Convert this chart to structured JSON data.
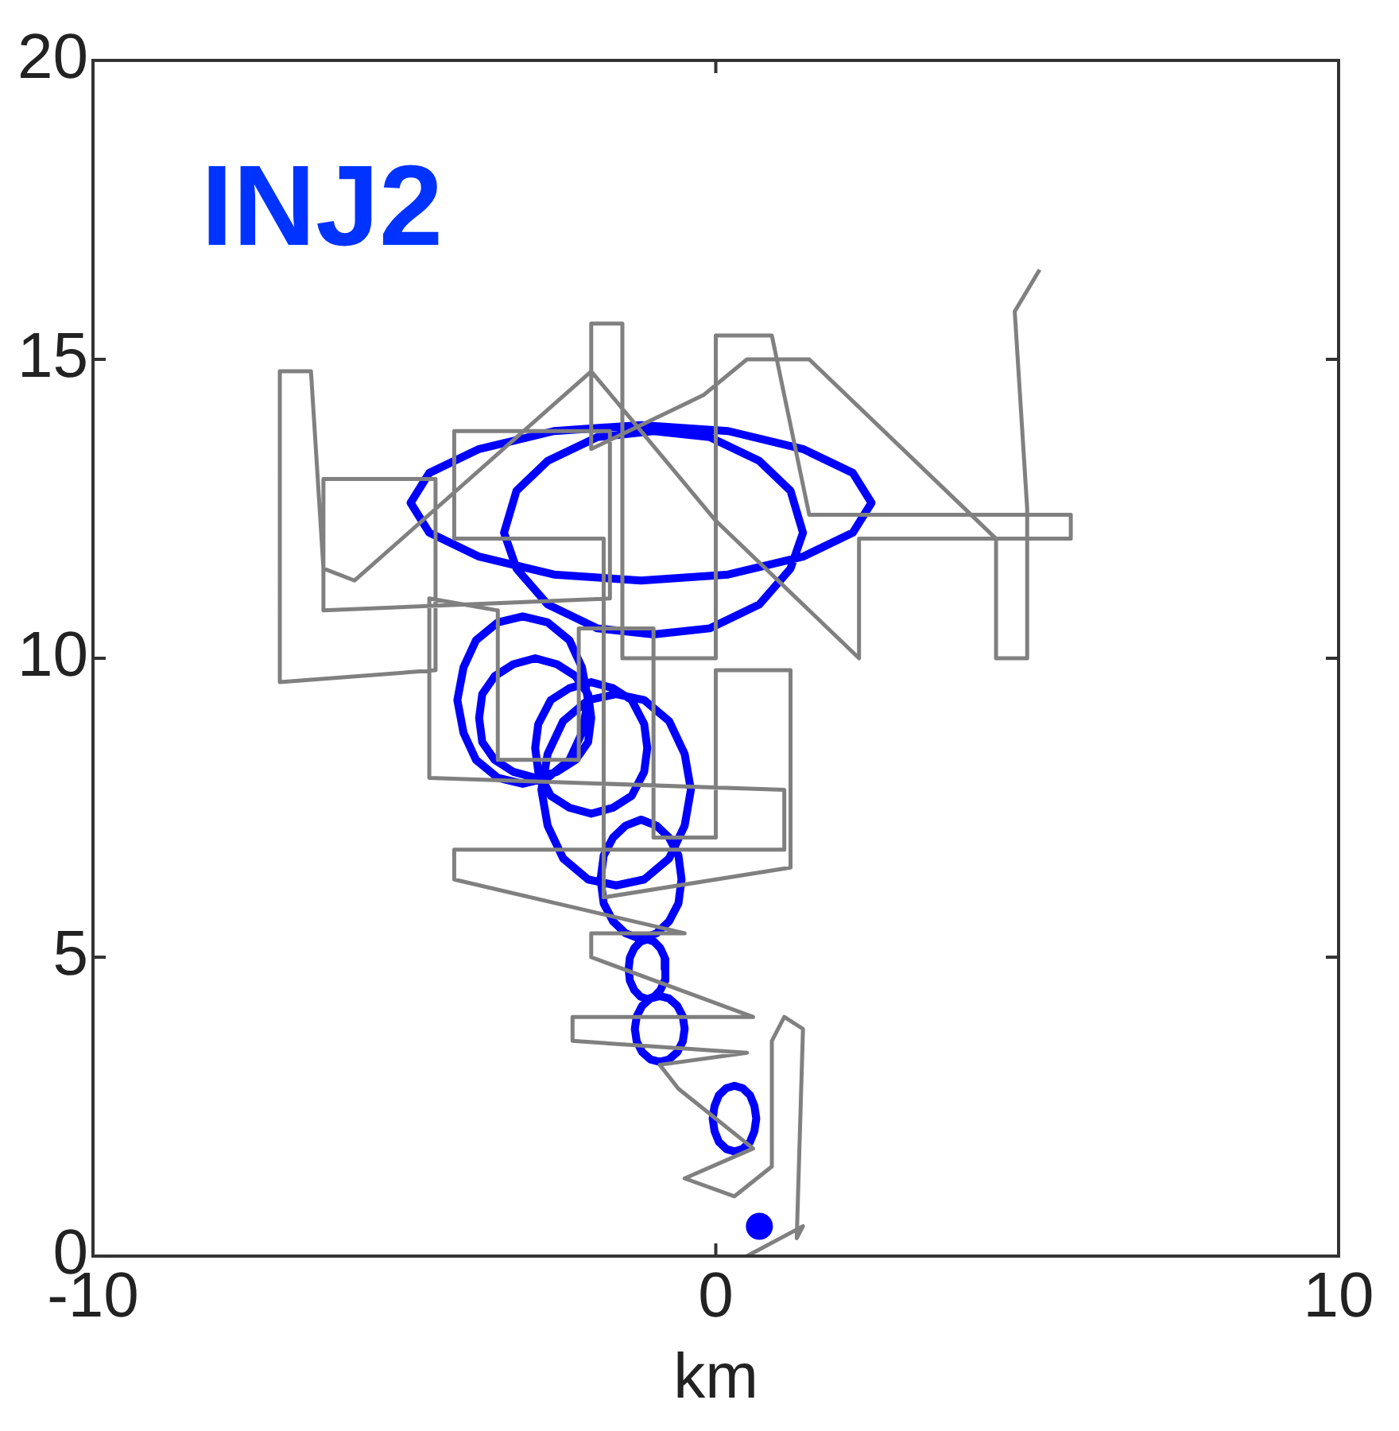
{
  "chart_data": {
    "type": "line",
    "xlabel": "km",
    "annotations": [
      "INJ2"
    ],
    "xlim": [
      -10,
      10
    ],
    "xticks": [
      -10,
      0,
      10
    ],
    "ylim": [
      0,
      20
    ],
    "yticks": [
      0,
      5,
      10,
      15,
      20
    ],
    "grid": false,
    "legend": false,
    "series": [
      {
        "color": "#808080",
        "x": [
          0.5,
          1.4,
          1.3,
          1.4,
          1.1,
          0.9,
          0.9,
          0.3,
          -0.5,
          0.6,
          -0.6,
          -0.9,
          0.5,
          -2.3,
          -2.3,
          0.6,
          -2.0,
          -2.0,
          -0.5,
          -4.2,
          -4.2,
          1.1,
          1.1,
          -4.6,
          -4.6,
          -3.5,
          -3.5,
          -2.2,
          -2.2,
          -1.0,
          -1.0,
          0.0,
          0.0,
          1.2,
          1.2,
          -1.8,
          -1.8,
          -4.2,
          -4.2,
          -1.7,
          -1.7,
          -6.3,
          -6.3,
          -4.5,
          -4.5,
          -7.0,
          -7.0,
          -6.5,
          -6.3,
          -5.8,
          -2.0,
          0.0,
          2.3,
          2.3,
          5.7,
          5.7,
          1.5,
          0.9,
          0.0,
          0.0,
          -1.5,
          -1.5,
          -2.0,
          -2.0,
          -0.2,
          0.5,
          1.5,
          4.5,
          4.5,
          5.0,
          5.0,
          4.8,
          5.2
        ],
        "values": [
          0.0,
          0.5,
          0.3,
          3.8,
          4.0,
          3.6,
          1.5,
          1.0,
          1.3,
          1.8,
          2.8,
          3.2,
          3.4,
          3.6,
          4.0,
          4.0,
          5.0,
          5.4,
          5.4,
          6.3,
          6.8,
          6.8,
          7.8,
          8.0,
          11.0,
          10.8,
          8.3,
          8.3,
          10.5,
          10.5,
          7.0,
          7.0,
          9.8,
          9.8,
          6.5,
          6.0,
          12.0,
          12.0,
          13.8,
          13.8,
          11.0,
          10.8,
          13.0,
          13.0,
          9.8,
          9.6,
          14.8,
          14.8,
          11.5,
          11.3,
          14.8,
          12.3,
          10.0,
          12.0,
          12.0,
          12.4,
          12.4,
          15.4,
          15.4,
          10.0,
          10.0,
          15.6,
          15.6,
          13.5,
          14.4,
          15.0,
          15.0,
          12.0,
          10.0,
          10.0,
          12.5,
          15.8,
          16.5
        ]
      },
      {
        "color": "#0000ff",
        "x": [
          2.5,
          2.2,
          1.4,
          0.2,
          -1.2,
          -2.6,
          -3.8,
          -4.6,
          -4.9,
          -4.6,
          -3.8,
          -2.6,
          -1.2,
          0.2,
          1.4,
          2.2,
          2.5,
          2.2,
          null,
          1.4,
          1.2,
          0.7,
          -0.1,
          -1.0,
          -1.9,
          -2.7,
          -3.2,
          -3.4,
          -3.2,
          -2.7,
          -1.9,
          -1.0,
          -0.1,
          0.7,
          1.2,
          1.4,
          1.2,
          null,
          -2.05,
          -2.15,
          -2.35,
          -2.7,
          -3.1,
          -3.5,
          -3.85,
          -4.05,
          -4.15,
          -4.05,
          -3.85,
          -3.5,
          -3.1,
          -2.7,
          -2.35,
          -2.15,
          -2.05,
          -2.15,
          null,
          -2.0,
          -2.05,
          -2.25,
          -2.55,
          -2.9,
          -3.25,
          -3.55,
          -3.75,
          -3.8,
          -3.75,
          -3.55,
          -3.25,
          -2.9,
          -2.55,
          -2.25,
          -2.05,
          -2.0,
          -2.05,
          null,
          -1.1,
          -1.15,
          -1.35,
          -1.65,
          -2.0,
          -2.35,
          -2.65,
          -2.85,
          -2.9,
          -2.85,
          -2.65,
          -2.35,
          -2.0,
          -1.65,
          -1.35,
          -1.15,
          -1.1,
          -1.15,
          null,
          -0.4,
          -0.5,
          -0.75,
          -1.15,
          -1.6,
          -2.05,
          -2.45,
          -2.7,
          -2.8,
          -2.7,
          -2.45,
          -2.05,
          -1.6,
          -1.15,
          -0.75,
          -0.5,
          -0.4,
          -0.5,
          null,
          -0.55,
          -0.6,
          -0.75,
          -0.95,
          -1.2,
          -1.45,
          -1.65,
          -1.8,
          -1.85,
          -1.8,
          -1.65,
          -1.45,
          -1.2,
          -0.95,
          -0.75,
          -0.6,
          -0.55,
          -0.6,
          null,
          -0.8,
          -0.82,
          -0.89,
          -0.99,
          -1.1,
          -1.21,
          -1.31,
          -1.38,
          -1.4,
          -1.38,
          -1.31,
          -1.21,
          -1.1,
          -0.99,
          -0.89,
          -0.82,
          -0.8,
          -0.82,
          null,
          -0.5,
          -0.53,
          -0.62,
          -0.75,
          -0.9,
          -1.05,
          -1.18,
          -1.27,
          -1.3,
          -1.27,
          -1.18,
          -1.05,
          -0.9,
          -0.75,
          -0.62,
          -0.53,
          -0.5,
          -0.53,
          null,
          0.65,
          0.62,
          0.55,
          0.43,
          0.3,
          0.17,
          0.05,
          -0.02,
          -0.05,
          -0.02,
          0.05,
          0.17,
          0.3,
          0.43,
          0.55,
          0.62,
          0.65,
          0.62
        ],
        "values": [
          12.6,
          13.1,
          13.5,
          13.8,
          13.9,
          13.8,
          13.5,
          13.1,
          12.6,
          12.1,
          11.7,
          11.4,
          11.3,
          11.4,
          11.7,
          12.1,
          12.6,
          13.1,
          null,
          12.1,
          12.8,
          13.3,
          13.7,
          13.8,
          13.7,
          13.3,
          12.8,
          12.1,
          11.5,
          10.9,
          10.5,
          10.4,
          10.5,
          10.9,
          11.5,
          12.1,
          12.8,
          null,
          9.3,
          9.85,
          10.3,
          10.6,
          10.7,
          10.6,
          10.3,
          9.85,
          9.3,
          8.75,
          8.3,
          8.0,
          7.9,
          8.0,
          8.3,
          8.75,
          9.3,
          9.85,
          null,
          9.0,
          9.4,
          9.7,
          9.9,
          10.0,
          9.9,
          9.7,
          9.4,
          9.0,
          8.6,
          8.3,
          8.1,
          8.0,
          8.1,
          8.3,
          8.6,
          9.0,
          9.4,
          null,
          8.5,
          8.9,
          9.3,
          9.5,
          9.6,
          9.5,
          9.3,
          8.9,
          8.5,
          8.1,
          7.7,
          7.5,
          7.4,
          7.5,
          7.7,
          8.1,
          8.5,
          8.9,
          null,
          7.8,
          8.4,
          8.95,
          9.3,
          9.4,
          9.3,
          8.95,
          8.4,
          7.8,
          7.2,
          6.65,
          6.3,
          6.2,
          6.3,
          6.65,
          7.2,
          7.8,
          8.4,
          null,
          6.3,
          6.7,
          7.0,
          7.2,
          7.3,
          7.2,
          7.0,
          6.7,
          6.3,
          5.9,
          5.6,
          5.4,
          5.3,
          5.4,
          5.6,
          5.9,
          6.3,
          6.7,
          null,
          4.8,
          4.99,
          5.15,
          5.26,
          5.3,
          5.26,
          5.15,
          4.99,
          4.8,
          4.61,
          4.45,
          4.34,
          4.3,
          4.34,
          4.45,
          4.61,
          4.8,
          4.99,
          null,
          3.8,
          4.01,
          4.19,
          4.31,
          4.35,
          4.31,
          4.19,
          4.01,
          3.8,
          3.59,
          3.41,
          3.29,
          3.25,
          3.29,
          3.41,
          3.59,
          3.8,
          4.01,
          null,
          2.3,
          2.51,
          2.69,
          2.81,
          2.85,
          2.81,
          2.69,
          2.51,
          2.3,
          2.09,
          1.91,
          1.79,
          1.75,
          1.79,
          1.91,
          2.09,
          2.3,
          2.51
        ]
      },
      {
        "type": "scatter",
        "color": "#0000ff",
        "x": [
          0.7
        ],
        "values": [
          0.5
        ]
      }
    ]
  }
}
